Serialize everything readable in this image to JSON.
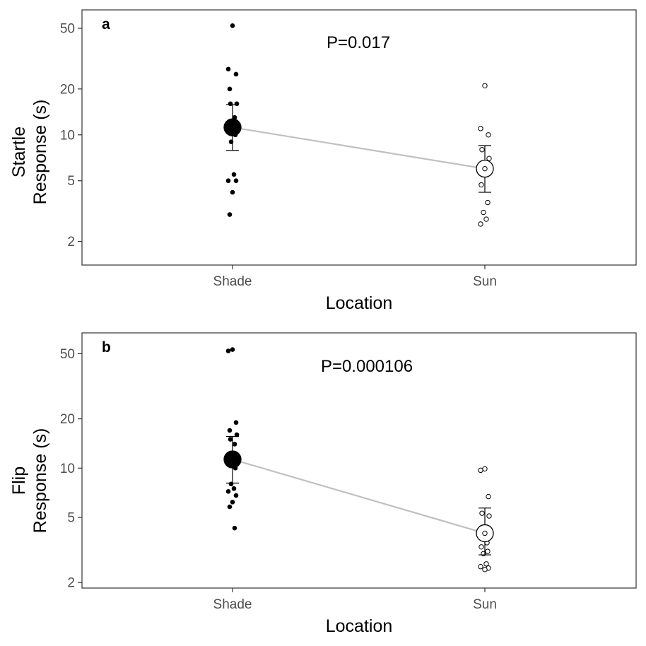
{
  "colors": {
    "shade_point": "#000000",
    "sun_point_fill": "#ffffff",
    "sun_point_stroke": "#000000",
    "connector": "#c0c0c0",
    "panel_border": "#333333"
  },
  "chart_data": [
    {
      "type": "scatter",
      "panel_label": "a",
      "annotation": "P=0.017",
      "xlabel": "Location",
      "ylabel_line1": "Startle",
      "ylabel_line2": "Response (s)",
      "yscale": "log",
      "ylim": [
        1.4,
        66
      ],
      "yticks": [
        2,
        5,
        10,
        20,
        50
      ],
      "ytick_labels": [
        "2",
        "5",
        "10",
        "20",
        "50"
      ],
      "categories": [
        "Shade",
        "Sun"
      ],
      "grid": false,
      "series": [
        {
          "category": "Shade",
          "style": "filled",
          "points": [
            52,
            27,
            25,
            20,
            16,
            16,
            13,
            12,
            10,
            9,
            5.5,
            5,
            5,
            4.2,
            3
          ],
          "mean": 11.2,
          "error_low": 7.9,
          "error_high": 15.8
        },
        {
          "category": "Sun",
          "style": "open",
          "points": [
            21,
            11,
            10,
            8,
            7,
            6.3,
            6,
            4.7,
            3.6,
            3.1,
            2.8,
            2.6
          ],
          "mean": 6,
          "error_low": 4.2,
          "error_high": 8.5
        }
      ]
    },
    {
      "type": "scatter",
      "panel_label": "b",
      "annotation": "P=0.000106",
      "xlabel": "Location",
      "ylabel_line1": "Flip",
      "ylabel_line2": "Response (s)",
      "yscale": "log",
      "ylim": [
        1.85,
        67
      ],
      "yticks": [
        2,
        5,
        10,
        20,
        50
      ],
      "ytick_labels": [
        "2",
        "5",
        "10",
        "20",
        "50"
      ],
      "categories": [
        "Shade",
        "Sun"
      ],
      "grid": false,
      "series": [
        {
          "category": "Shade",
          "style": "filled",
          "points": [
            53,
            52,
            19,
            17,
            16,
            15,
            14,
            11,
            10,
            8,
            7.5,
            7.2,
            6.8,
            6.2,
            5.8,
            4.3
          ],
          "mean": 11.3,
          "error_low": 8.1,
          "error_high": 15.6
        },
        {
          "category": "Sun",
          "style": "open",
          "points": [
            9.9,
            9.7,
            6.7,
            5.3,
            5.1,
            4,
            3.5,
            3.3,
            3.1,
            3,
            2.6,
            2.5,
            2.45,
            2.4
          ],
          "mean": 4,
          "error_low": 2.95,
          "error_high": 5.7
        }
      ]
    }
  ]
}
